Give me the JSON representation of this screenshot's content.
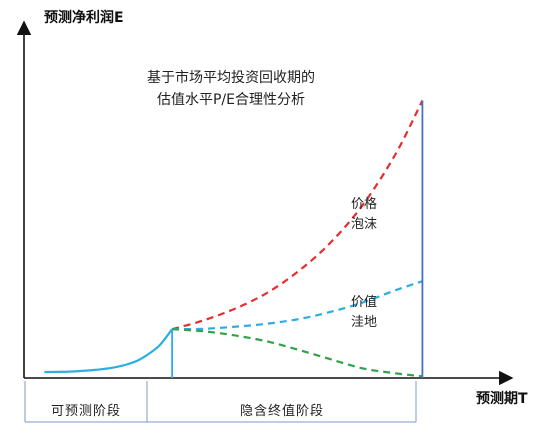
{
  "chart_data": {
    "type": "line",
    "title_lines": [
      "基于市场平均投资回收期的",
      "估值水平P/E合理性分析"
    ],
    "ylabel": "预测净利润E",
    "xlabel": "预测期T",
    "phases": [
      "可预测阶段",
      "隐含终值阶段"
    ],
    "region_labels": {
      "bubble": [
        "价格",
        "泡沫"
      ],
      "depression": [
        "价值",
        "洼地"
      ]
    },
    "series": [
      {
        "line_style": "solid",
        "color": "#2eaee0",
        "x": [
          0,
          0.2,
          0.4,
          0.55,
          0.7,
          0.8,
          0.9,
          1.0
        ],
        "y": [
          0.0,
          0.01,
          0.05,
          0.11,
          0.23,
          0.39,
          0.62,
          1.0
        ]
      },
      {
        "line_style": "dashed",
        "color": "#e62e2e",
        "x": [
          1.0,
          1.25,
          1.5,
          1.75,
          2.0,
          2.25,
          2.5,
          2.75,
          2.96
        ],
        "y": [
          1.0,
          1.21,
          1.49,
          1.86,
          2.38,
          3.05,
          3.93,
          5.09,
          6.34
        ]
      },
      {
        "line_style": "dashed",
        "color": "#2eaee0",
        "x": [
          1.0,
          1.25,
          1.5,
          1.75,
          2.0,
          2.25,
          2.5,
          2.75,
          2.96
        ],
        "y": [
          1.0,
          1.01,
          1.06,
          1.13,
          1.24,
          1.41,
          1.63,
          1.91,
          2.12
        ]
      },
      {
        "line_style": "dashed",
        "color": "#2ea34a",
        "x": [
          1.0,
          1.25,
          1.5,
          1.75,
          2.0,
          2.25,
          2.5,
          2.75,
          2.96
        ],
        "y": [
          1.0,
          0.95,
          0.85,
          0.71,
          0.51,
          0.29,
          0.08,
          -0.03,
          -0.1
        ]
      }
    ],
    "boundaries": [
      1.0,
      2.96
    ],
    "xlim": [
      -0.16,
      3.92
    ],
    "ylim": [
      -0.14,
      8.5
    ],
    "grid": false,
    "legend": "none"
  }
}
